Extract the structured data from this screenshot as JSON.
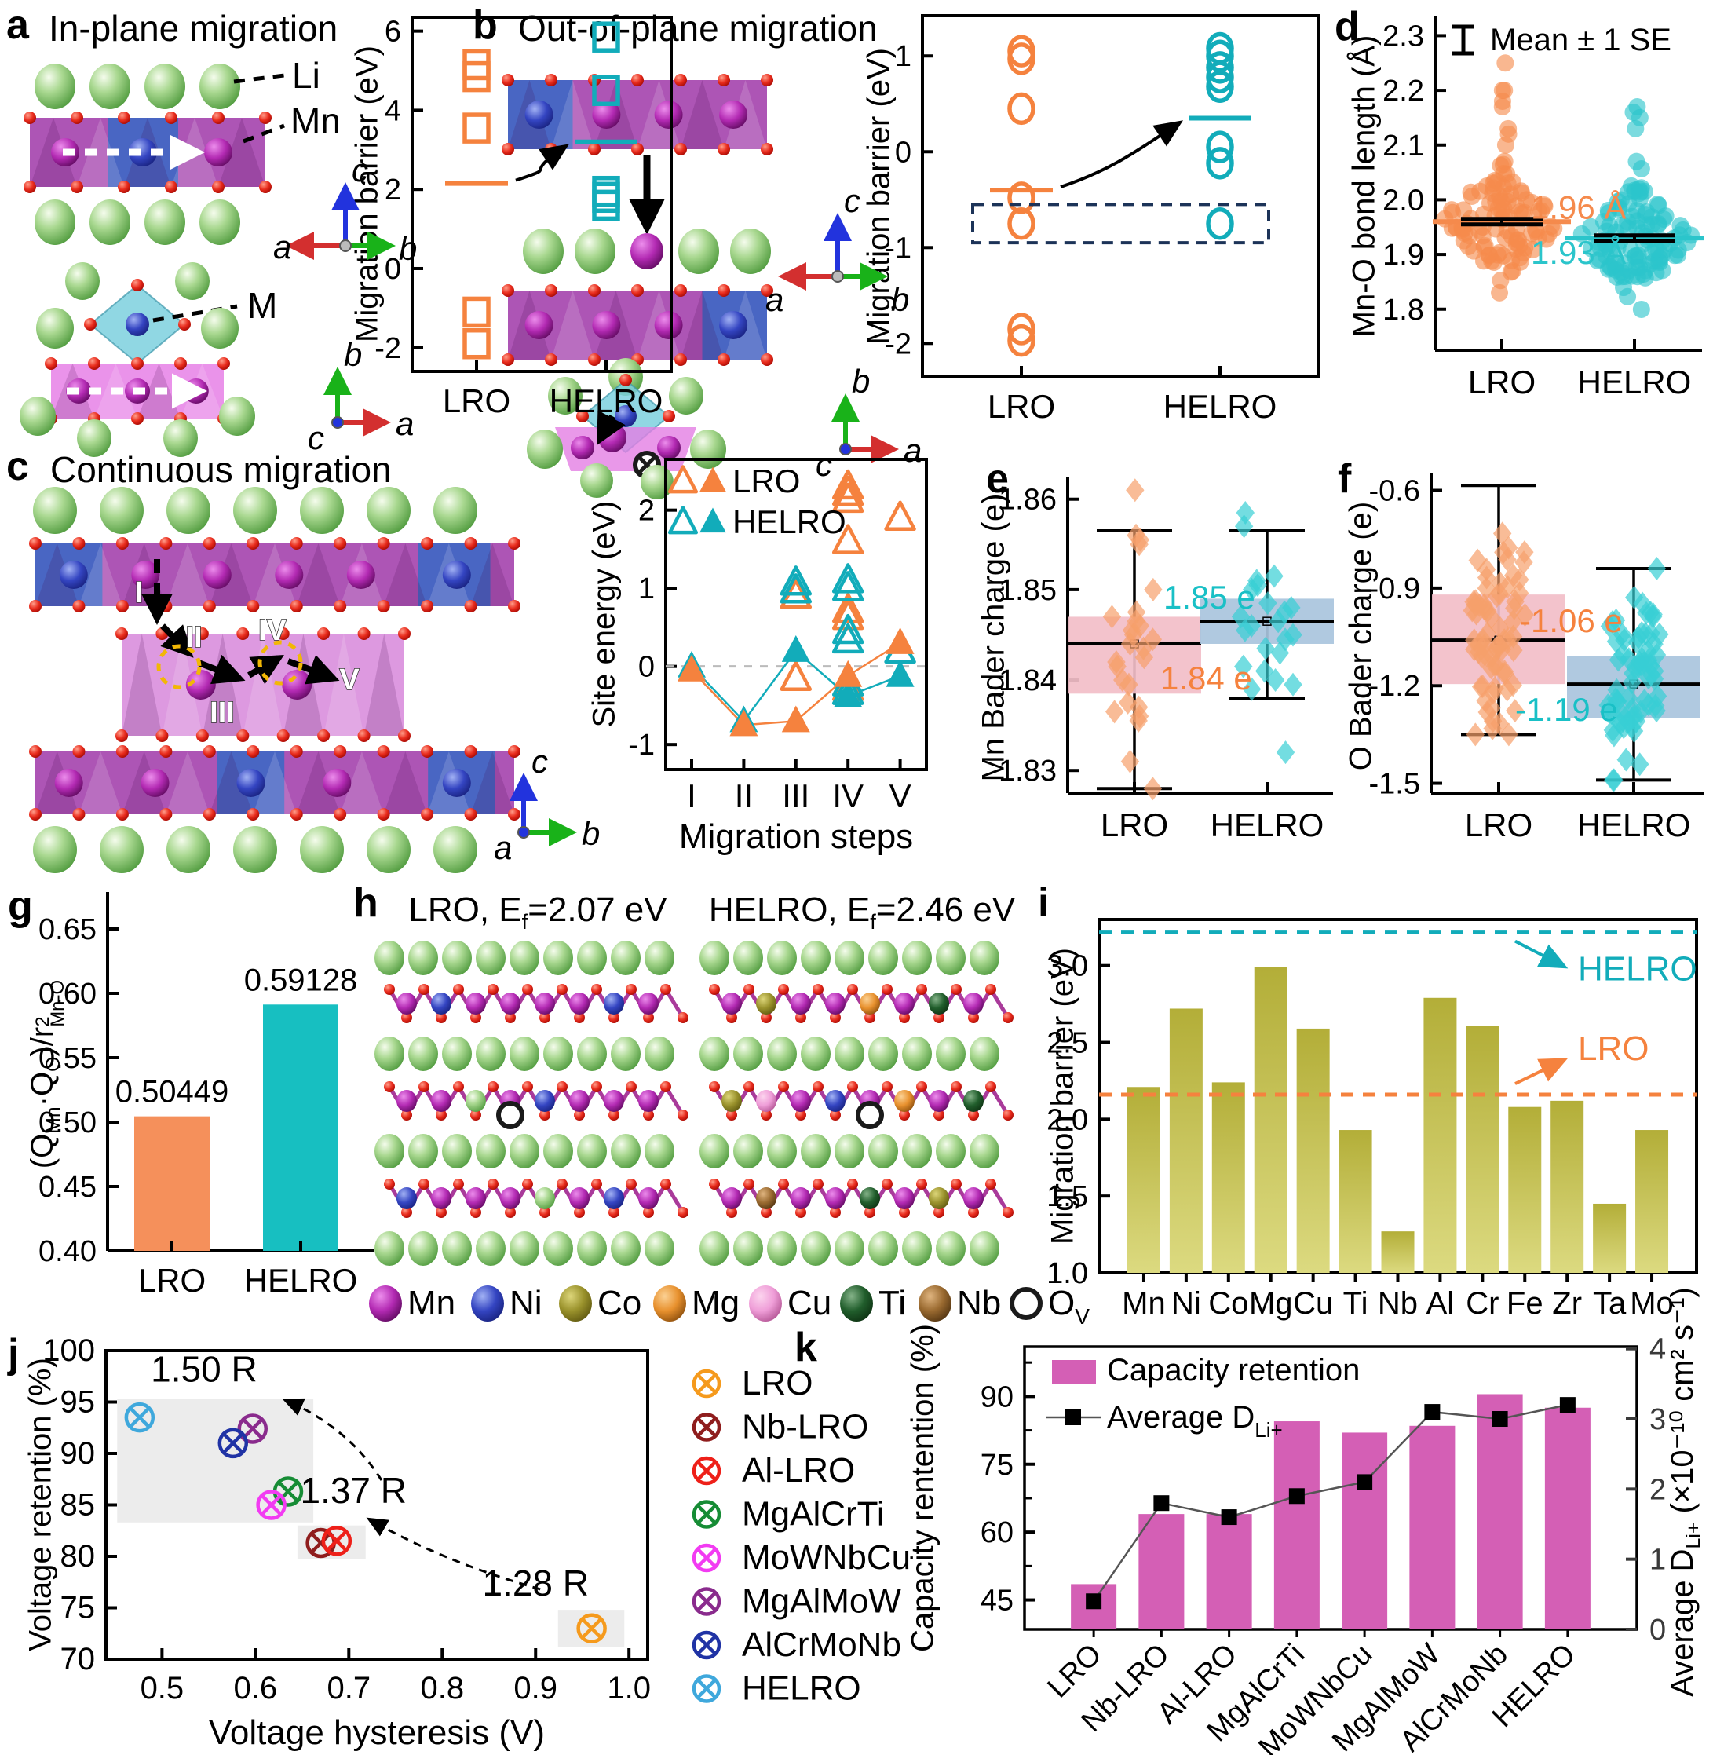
{
  "panels": {
    "a": {
      "label": "a",
      "title": "In-plane migration",
      "li": "Li",
      "mn": "Mn",
      "m": "M",
      "axis1": {
        "up": "c",
        "left": "a",
        "right": "b"
      },
      "axis2": {
        "up": "b",
        "right": "a",
        "origin": "c"
      }
    },
    "b": {
      "label": "b",
      "title": "Out-of-plane migration",
      "axis1": {
        "up": "c",
        "left": "a",
        "right": "b"
      },
      "axis2": {
        "up": "b",
        "right": "a",
        "origin": "c"
      }
    },
    "c": {
      "label": "c",
      "title": "Continuous migration",
      "steps": [
        "I",
        "II",
        "III",
        "IV",
        "V"
      ],
      "axis": {
        "up": "c",
        "right": "b",
        "origin": "a"
      }
    },
    "d": {
      "label": "d"
    },
    "e": {
      "label": "e"
    },
    "f": {
      "label": "f"
    },
    "g": {
      "label": "g"
    },
    "h": {
      "label": "h",
      "title_lro": [
        [
          "t",
          "LRO, E"
        ],
        [
          "sub",
          "f"
        ],
        [
          "t",
          "=2.07 eV"
        ]
      ],
      "title_helro": [
        [
          "t",
          "HELRO, E"
        ],
        [
          "sub",
          "f"
        ],
        [
          "t",
          "=2.46 eV"
        ]
      ],
      "legend": [
        {
          "name": "Mn",
          "grad": "gMn"
        },
        {
          "name": "Ni",
          "grad": "gNi"
        },
        {
          "name": "Co",
          "grad": "gCo"
        },
        {
          "name": "Mg",
          "grad": "gMg"
        },
        {
          "name": "Cu",
          "grad": "gCu"
        },
        {
          "name": "Ti",
          "grad": "gTi"
        },
        {
          "name": "Nb",
          "grad": "gNb"
        },
        {
          "name": "O",
          "sub": "V",
          "vacancy": true
        }
      ]
    },
    "i": {
      "label": "i"
    },
    "j": {
      "label": "j"
    },
    "k": {
      "label": "k"
    }
  },
  "chart_data": [
    {
      "id": "a",
      "type": "group-scatter",
      "marker": "square",
      "ylabel": "Migration barrier (eV)",
      "ylim": [
        -2.6,
        6.35
      ],
      "yticks": [
        -2,
        0,
        2,
        4,
        6
      ],
      "tick_dec": 0,
      "groups": [
        {
          "name": "LRO",
          "color": "#F5823E",
          "points": [
            5.15,
            4.85,
            3.55,
            -1.1,
            -1.9
          ],
          "mean": 2.15
        },
        {
          "name": "HELRO",
          "color": "#12ACBA",
          "points": [
            5.85,
            4.5,
            1.95,
            1.8,
            1.6
          ],
          "mean": 3.2
        }
      ],
      "arrow": true
    },
    {
      "id": "b",
      "type": "group-scatter",
      "marker": "circle",
      "ylabel": "Migration barrier (eV)",
      "ylim": [
        -2.35,
        1.42
      ],
      "yticks": [
        -2,
        -1,
        0,
        1
      ],
      "tick_dec": 0,
      "groups": [
        {
          "name": "LRO",
          "color": "#F5823E",
          "points": [
            1.05,
            0.97,
            0.45,
            -0.48,
            -0.75,
            -1.85,
            -1.97
          ],
          "mean": -0.4
        },
        {
          "name": "HELRO",
          "color": "#12ACBA",
          "points": [
            1.08,
            1.0,
            0.88,
            0.78,
            0.68,
            0.05,
            -0.12,
            -0.75
          ],
          "mean": 0.35
        }
      ],
      "arrow": true,
      "dash_box": {
        "y_top": -0.55,
        "y_bottom": -0.95
      }
    },
    {
      "id": "c",
      "type": "step-scatter",
      "xlabel": "Migration steps",
      "ylabel": "Site energy (eV)",
      "categories": [
        "I",
        "II",
        "III",
        "IV",
        "V"
      ],
      "ylim": [
        -1.32,
        2.65
      ],
      "yticks": [
        -1,
        0,
        1,
        2
      ],
      "tick_dec": 0,
      "zero_line": true,
      "legend": [
        "LRO",
        "HELRO"
      ],
      "colors": {
        "lro": "#F5823E",
        "helro": "#12ACBA"
      },
      "lro_line": [
        -0.05,
        -0.75,
        -0.7,
        -0.12,
        0.3
      ],
      "helro_line": [
        0.0,
        -0.7,
        0.2,
        -0.38,
        -0.12
      ],
      "lro_open": [
        [
          3,
          0.9
        ],
        [
          3,
          -0.15
        ],
        [
          4,
          2.3
        ],
        [
          4,
          2.22
        ],
        [
          4,
          2.13
        ],
        [
          4,
          1.6
        ],
        [
          4,
          0.72
        ],
        [
          4,
          0.63
        ],
        [
          4,
          -0.28
        ],
        [
          5,
          1.9
        ]
      ],
      "helro_open": [
        [
          3,
          1.07
        ],
        [
          3,
          0.97
        ],
        [
          4,
          1.1
        ],
        [
          4,
          1.0
        ],
        [
          4,
          0.45
        ],
        [
          4,
          0.33
        ],
        [
          4,
          -0.22
        ],
        [
          4,
          -0.33
        ],
        [
          5,
          0.2
        ]
      ]
    },
    {
      "id": "d",
      "type": "beeswarm",
      "ylabel": "Mn-O bond length (Å)",
      "legend_label": "Mean ± 1 SE",
      "ylim": [
        1.725,
        2.325
      ],
      "yticks": [
        1.8,
        1.9,
        2.0,
        2.1,
        2.2,
        2.3
      ],
      "tick_dec": 1,
      "groups": [
        {
          "name": "LRO",
          "color": "#F58A4C",
          "mean": 1.96,
          "se": 0.005,
          "mean_label": "1.96 Å",
          "n": 100,
          "sigma": 0.05,
          "min": 1.83,
          "max": 2.07,
          "outliers": [
            2.25,
            2.2,
            2.2,
            2.18,
            2.17,
            2.13,
            2.12,
            2.1,
            2.03,
            2.03
          ],
          "seed": 42
        },
        {
          "name": "HELRO",
          "color": "#2BC5CB",
          "mean": 1.93,
          "se": 0.005,
          "mean_label": "1.93 Å",
          "n": 110,
          "sigma": 0.05,
          "min": 1.78,
          "max": 2.07,
          "outliers": [
            2.17,
            2.16,
            2.15,
            2.13
          ],
          "seed": 77
        }
      ]
    },
    {
      "id": "e",
      "type": "box-scatter",
      "ylabel": "Mn Bader charge (e)",
      "ylim": [
        1.8275,
        1.8618
      ],
      "yticks": [
        1.83,
        1.84,
        1.85,
        1.86
      ],
      "tick_dec": 2,
      "groups": [
        {
          "name": "LRO",
          "box_color": "#F2BEC8",
          "pt_color": "#F7A06B",
          "low": 1.828,
          "q1": 1.8385,
          "median": 1.844,
          "q3": 1.847,
          "high": 1.8565,
          "label": {
            "text": "1.84 e",
            "color": "#F5823E"
          },
          "seed": 11,
          "points": [
            1.861,
            1.856,
            1.8555,
            1.855,
            1.85,
            1.8475,
            1.847,
            1.8465,
            1.846,
            1.8455,
            1.845,
            1.8445,
            1.844,
            1.8435,
            1.8425,
            1.842,
            1.8415,
            1.84,
            1.8395,
            1.8375,
            1.837,
            1.8365,
            1.836,
            1.8355,
            1.831,
            1.828
          ]
        },
        {
          "name": "HELRO",
          "box_color": "#A9C4DD",
          "pt_color": "#37CED4",
          "low": 1.838,
          "q1": 1.844,
          "median": 1.8465,
          "q3": 1.849,
          "high": 1.8565,
          "label": {
            "text": "1.85 e",
            "color": "#19C0C6"
          },
          "seed": 23,
          "points": [
            1.8585,
            1.857,
            1.8515,
            1.851,
            1.8505,
            1.85,
            1.8485,
            1.848,
            1.8475,
            1.847,
            1.8465,
            1.846,
            1.8455,
            1.845,
            1.8445,
            1.8435,
            1.843,
            1.8415,
            1.841,
            1.84,
            1.8395,
            1.839,
            1.832
          ]
        }
      ]
    },
    {
      "id": "f",
      "type": "box-scatter",
      "ylabel": "O Bader charge (e)",
      "ylim": [
        -1.53,
        -0.565
      ],
      "yticks": [
        -0.6,
        -0.9,
        -1.2,
        -1.5
      ],
      "tick_dec": 1,
      "groups": [
        {
          "name": "LRO",
          "box_color": "#F2BEC8",
          "pt_color": "#F7A06B",
          "low": -1.35,
          "q1": -1.195,
          "median": -1.06,
          "q3": -0.92,
          "high": -0.585,
          "label": {
            "text": "-1.06 e",
            "color": "#F5823E"
          },
          "n": 70,
          "center": -1.07,
          "sigma": 0.17,
          "min": -1.35,
          "max": -0.585,
          "seed": 5
        },
        {
          "name": "HELRO",
          "box_color": "#A9C4DD",
          "pt_color": "#37CED4",
          "low": -1.49,
          "q1": -1.3,
          "median": -1.195,
          "q3": -1.11,
          "high": -0.84,
          "label": {
            "text": "-1.19 e",
            "color": "#19C0C6"
          },
          "n": 70,
          "center": -1.21,
          "sigma": 0.16,
          "min": -1.49,
          "max": -0.84,
          "seed": 9
        }
      ]
    },
    {
      "id": "g",
      "type": "bar",
      "ylabel_rich": [
        [
          "t",
          "(Q"
        ],
        [
          "sub",
          "Mn"
        ],
        [
          "t",
          "·Q"
        ],
        [
          "sub",
          "O"
        ],
        [
          "t",
          ")/r"
        ],
        [
          "supsub",
          "2",
          "Mn-O"
        ]
      ],
      "ylim": [
        0.4,
        0.675
      ],
      "yticks": [
        0.4,
        0.45,
        0.5,
        0.55,
        0.6,
        0.65
      ],
      "tick_dec": 2,
      "categories": [
        "LRO",
        "HELRO"
      ],
      "values": [
        0.50449,
        0.59128
      ],
      "value_labels": [
        "0.50449",
        "0.59128"
      ],
      "colors": [
        "#F5905B",
        "#17BFC1"
      ]
    },
    {
      "id": "i",
      "type": "bar",
      "ylabel": "Migration barrier (eV)",
      "ylim": [
        1.0,
        3.3
      ],
      "yticks": [
        1.0,
        1.5,
        2.0,
        2.5,
        3.0
      ],
      "tick_dec": 1,
      "categories": [
        "Mn",
        "Ni",
        "Co",
        "Mg",
        "Cu",
        "Ti",
        "Nb",
        "Al",
        "Cr",
        "Fe",
        "Zr",
        "Ta",
        "Mo"
      ],
      "values": [
        2.21,
        2.72,
        2.24,
        2.99,
        2.59,
        1.93,
        1.27,
        2.79,
        2.61,
        2.08,
        2.12,
        1.45,
        1.93
      ],
      "bar_gradient": [
        "#B3AE38",
        "#DCDA80"
      ],
      "ref_lines": [
        {
          "value": 3.22,
          "color": "#12ACBA",
          "label": "HELRO"
        },
        {
          "value": 2.16,
          "color": "#F5823E",
          "label": "LRO"
        }
      ]
    },
    {
      "id": "j",
      "type": "xy-scatter",
      "xlabel": "Voltage hysteresis (V)",
      "ylabel": "Voltage retention (%)",
      "xlim": [
        0.44,
        1.02
      ],
      "ylim": [
        70,
        100
      ],
      "xticks": [
        0.5,
        0.6,
        0.7,
        0.8,
        0.9,
        1.0
      ],
      "yticks": [
        70,
        75,
        80,
        85,
        90,
        95,
        100
      ],
      "points": [
        {
          "name": "LRO",
          "color": "#F59A1D",
          "x": 0.96,
          "y": 73
        },
        {
          "name": "Nb-LRO",
          "color": "#8F1D1D",
          "x": 0.67,
          "y": 81.3
        },
        {
          "name": "Al-LRO",
          "color": "#EE2019",
          "x": 0.687,
          "y": 81.5
        },
        {
          "name": "MgAlCrTi",
          "color": "#168C35",
          "x": 0.635,
          "y": 86.3
        },
        {
          "name": "MoWNbCu",
          "color": "#F23BF2",
          "x": 0.617,
          "y": 85
        },
        {
          "name": "MgAlMoW",
          "color": "#8A2B8D",
          "x": 0.597,
          "y": 92.4
        },
        {
          "name": "AlCrMoNb",
          "color": "#2033A5",
          "x": 0.576,
          "y": 91
        },
        {
          "name": "HELRO",
          "color": "#3FA8DC",
          "x": 0.476,
          "y": 93.5
        }
      ],
      "annotations": [
        {
          "text": "1.50 R",
          "x": 0.545,
          "y": 97
        },
        {
          "text": "1.37 R",
          "x": 0.705,
          "y": 85.2
        },
        {
          "text": "1.28 R",
          "x": 0.9,
          "y": 76.2
        }
      ],
      "shaded": [
        {
          "x1": 0.452,
          "x2": 0.662,
          "y1": 83.3,
          "y2": 95.3
        },
        {
          "x1": 0.645,
          "x2": 0.718,
          "y1": 79.7,
          "y2": 83.0
        },
        {
          "x1": 0.924,
          "x2": 0.995,
          "y1": 71.2,
          "y2": 74.8
        }
      ],
      "legend_order": [
        "LRO",
        "Nb-LRO",
        "Al-LRO",
        "MgAlCrTi",
        "MoWNbCu",
        "MgAlMoW",
        "AlCrMoNb",
        "HELRO"
      ]
    },
    {
      "id": "k",
      "type": "bar-line",
      "ylabel_left": "Capacity rentention (%)",
      "ylabel_right_rich": [
        [
          "t",
          "Average D"
        ],
        [
          "sub",
          "Li+"
        ],
        [
          "t",
          " (×10⁻¹⁰ cm² s⁻¹)"
        ]
      ],
      "categories": [
        "LRO",
        "Nb-LRO",
        "Al-LRO",
        "MgAlCrTi",
        "MoWNbCu",
        "MgAlMoW",
        "AlCrMoNb",
        "HELRO"
      ],
      "bars": [
        48.5,
        64,
        64,
        84.5,
        82,
        83.5,
        90.5,
        87.5
      ],
      "line": [
        0.4,
        1.8,
        1.6,
        1.9,
        2.1,
        3.1,
        3.0,
        3.2
      ],
      "left_ylim": [
        38.5,
        101
      ],
      "left_ticks": [
        45,
        60,
        75,
        90
      ],
      "right_ylim": [
        0,
        4.03
      ],
      "right_ticks": [
        0,
        1,
        2,
        3,
        4
      ],
      "bar_color": "#D45FB5",
      "legend": [
        {
          "label": "Capacity retention"
        },
        {
          "label_rich": [
            [
              "t",
              "Average D"
            ],
            [
              "sub",
              "Li+"
            ]
          ]
        }
      ]
    }
  ]
}
